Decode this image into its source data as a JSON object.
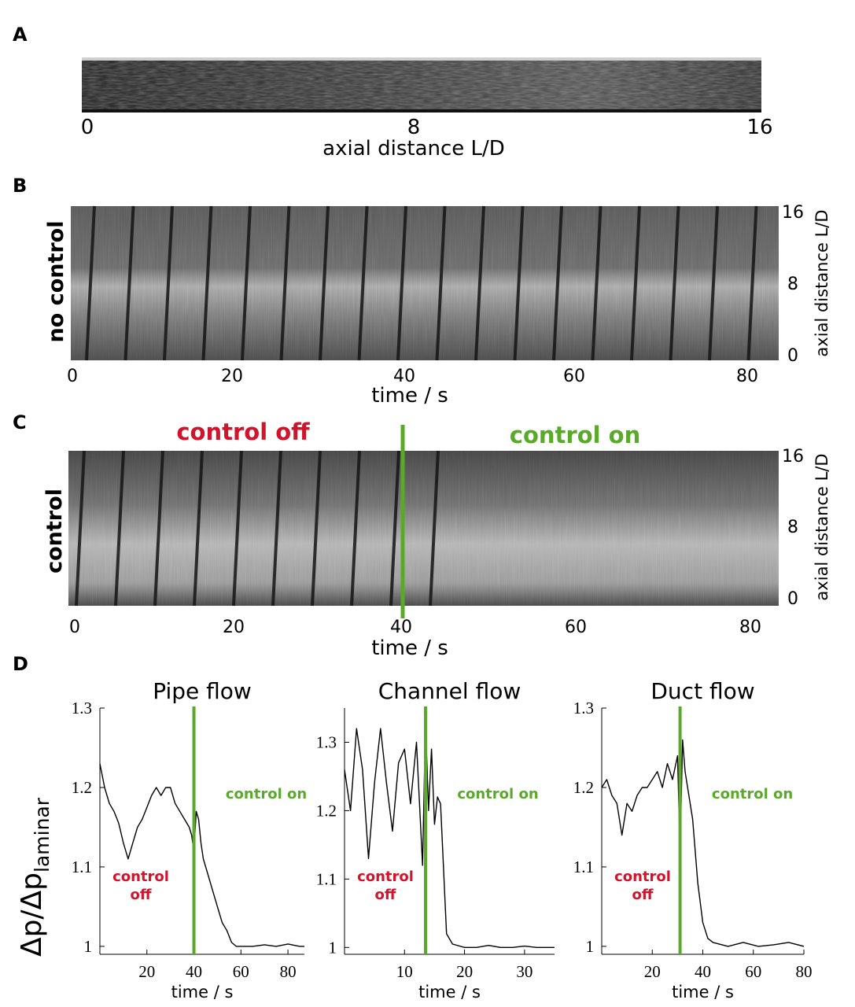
{
  "panels": {
    "A": {
      "letter": "A",
      "ticks": [
        "0",
        "8",
        "16"
      ],
      "xlabel": "axial distance L/D"
    },
    "B": {
      "letter": "B",
      "side_label": "no control",
      "xticks": [
        "0",
        "20",
        "40",
        "60",
        "80"
      ],
      "yticks": [
        "0",
        "8",
        "16"
      ],
      "xlabel": "time / s",
      "ylabel": "axial distance L/D"
    },
    "C": {
      "letter": "C",
      "side_label": "control",
      "label_off": "control off",
      "label_on": "control on",
      "xticks": [
        "0",
        "20",
        "40",
        "60",
        "80"
      ],
      "yticks": [
        "0",
        "8",
        "16"
      ],
      "xlabel": "time / s",
      "ylabel": "axial distance L/D"
    },
    "D": {
      "letter": "D",
      "ylabel_main": "Δp/Δp",
      "ylabel_sub": "laminar"
    }
  },
  "colors": {
    "control_on": "#5aaa2a",
    "control_off": "#d0142c",
    "trace": "#000000"
  },
  "chart_data": [
    {
      "type": "line",
      "title": "Pipe flow",
      "xlabel": "time / s",
      "xticks": [
        20,
        40,
        60,
        80
      ],
      "yticks": [
        1,
        1.1,
        1.2,
        1.3
      ],
      "xlim": [
        0,
        87
      ],
      "ylim": [
        0.99,
        1.3
      ],
      "control_switch": 40,
      "label_off": [
        "control",
        "off"
      ],
      "label_on": "control on",
      "series": [
        {
          "x": [
            0,
            2,
            4,
            6,
            8,
            10,
            12,
            14,
            16,
            18,
            20,
            22,
            24,
            26,
            28,
            30,
            32,
            34,
            36,
            38,
            39,
            40,
            41,
            42,
            43,
            44,
            46,
            48,
            50,
            52,
            54,
            56,
            58,
            60,
            65,
            70,
            75,
            80,
            85,
            87
          ],
          "y": [
            1.23,
            1.2,
            1.18,
            1.17,
            1.155,
            1.13,
            1.11,
            1.13,
            1.15,
            1.16,
            1.175,
            1.19,
            1.2,
            1.19,
            1.2,
            1.2,
            1.18,
            1.17,
            1.16,
            1.15,
            1.14,
            1.12,
            1.17,
            1.16,
            1.13,
            1.11,
            1.09,
            1.07,
            1.05,
            1.03,
            1.02,
            1.005,
            1.0,
            1.0,
            1.0,
            1.002,
            1.0,
            1.003,
            1.0,
            1.0
          ]
        }
      ]
    },
    {
      "type": "line",
      "title": "Channel flow",
      "xlabel": "time / s",
      "xticks": [
        10,
        20,
        30
      ],
      "yticks": [
        1,
        1.1,
        1.2,
        1.3
      ],
      "xlim": [
        0,
        35
      ],
      "ylim": [
        0.99,
        1.35
      ],
      "control_switch": 13.5,
      "label_off": [
        "control",
        "off"
      ],
      "label_on": "control on",
      "series": [
        {
          "x": [
            0,
            1,
            2,
            3,
            4,
            5,
            6,
            7,
            8,
            9,
            10,
            11,
            12,
            13,
            13.5,
            14,
            14.5,
            15,
            15.5,
            16,
            17,
            18,
            20,
            22,
            24,
            26,
            28,
            30,
            32,
            34,
            35
          ],
          "y": [
            1.26,
            1.2,
            1.32,
            1.26,
            1.13,
            1.24,
            1.32,
            1.24,
            1.17,
            1.27,
            1.29,
            1.21,
            1.3,
            1.12,
            1.33,
            1.2,
            1.29,
            1.18,
            1.22,
            1.21,
            1.02,
            1.005,
            1.0,
            1.0,
            1.003,
            1.0,
            1.0,
            1.002,
            1.0,
            1.0,
            1.0
          ]
        }
      ]
    },
    {
      "type": "line",
      "title": "Duct flow",
      "xlabel": "time / s",
      "xticks": [
        20,
        40,
        60,
        80
      ],
      "yticks": [
        1,
        1.1,
        1.2,
        1.3
      ],
      "xlim": [
        0,
        80
      ],
      "ylim": [
        0.99,
        1.3
      ],
      "control_switch": 31,
      "label_off": [
        "control",
        "off"
      ],
      "label_on": "control on",
      "series": [
        {
          "x": [
            0,
            2,
            4,
            6,
            8,
            10,
            12,
            14,
            16,
            18,
            20,
            22,
            24,
            26,
            28,
            30,
            31,
            32,
            33,
            34,
            36,
            38,
            40,
            42,
            44,
            50,
            56,
            62,
            68,
            74,
            80
          ],
          "y": [
            1.2,
            1.21,
            1.19,
            1.18,
            1.14,
            1.18,
            1.17,
            1.19,
            1.2,
            1.2,
            1.21,
            1.22,
            1.2,
            1.23,
            1.21,
            1.24,
            1.12,
            1.26,
            1.22,
            1.2,
            1.16,
            1.08,
            1.03,
            1.01,
            1.005,
            1.0,
            1.005,
            1.0,
            1.002,
            1.005,
            1.0
          ]
        }
      ]
    }
  ]
}
